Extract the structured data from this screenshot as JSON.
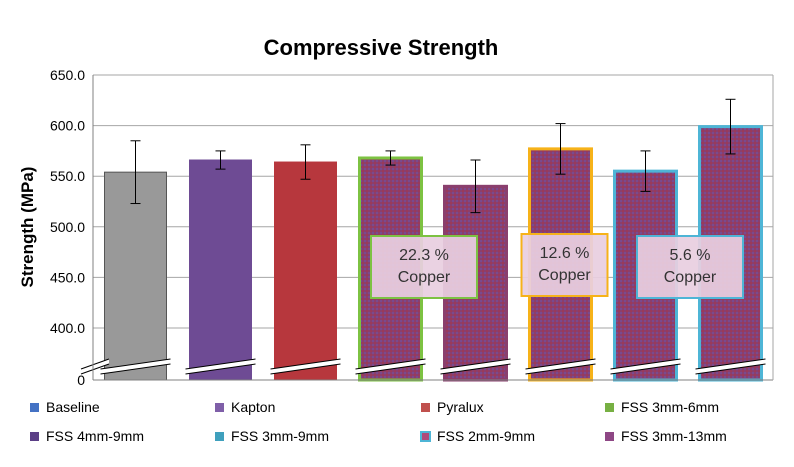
{
  "chart_data": {
    "type": "bar",
    "title": "Compressive Strength",
    "xlabel": "",
    "ylabel": "Strength (MPa)",
    "ylim": [
      400,
      650
    ],
    "axis_break": true,
    "bottom_tick_label": "0",
    "yticks": [
      "400.0",
      "450.0",
      "500.0",
      "550.0",
      "600.0",
      "650.0"
    ],
    "grid": "horizontal",
    "legend_position": "bottom",
    "categories": [
      "Baseline",
      "Kapton",
      "Pyralux",
      "FSS 3mm-6mm",
      "FSS 4mm-9mm",
      "FSS 3mm-9mm",
      "FSS 2mm-9mm",
      "FSS 3mm-13mm"
    ],
    "values": [
      554,
      566,
      564,
      568,
      540,
      577,
      555,
      599
    ],
    "error": [
      31,
      9,
      17,
      7,
      26,
      25,
      20,
      27
    ],
    "colors": {
      "fills": [
        "#999999",
        "#6e4b94",
        "#b7373d",
        "#8a3f6e",
        "#8a3f6e",
        "#8a3f6e",
        "#8a3f6e",
        "#8a3f6e"
      ],
      "borders": [
        "#555555",
        "#6e4b94",
        "#b7373d",
        "#7dc242",
        "#8a3f6e",
        "#f6b219",
        "#4eb5d6",
        "#4eb5d6"
      ],
      "legend_swatches": [
        "#4472c4",
        "#7f5fa8",
        "#c0504d",
        "#77b043",
        "#5b3f86",
        "#3fa0bd",
        "#b04a7a",
        "#8e4785"
      ]
    },
    "annotations": [
      {
        "lines": [
          "22.3 %",
          "Copper"
        ],
        "border_color": "#7dc242"
      },
      {
        "lines": [
          "12.6 %",
          "Copper"
        ],
        "border_color": "#f6b219"
      },
      {
        "lines": [
          "5.6 %",
          "Copper"
        ],
        "border_color": "#4eb5d6"
      }
    ]
  }
}
